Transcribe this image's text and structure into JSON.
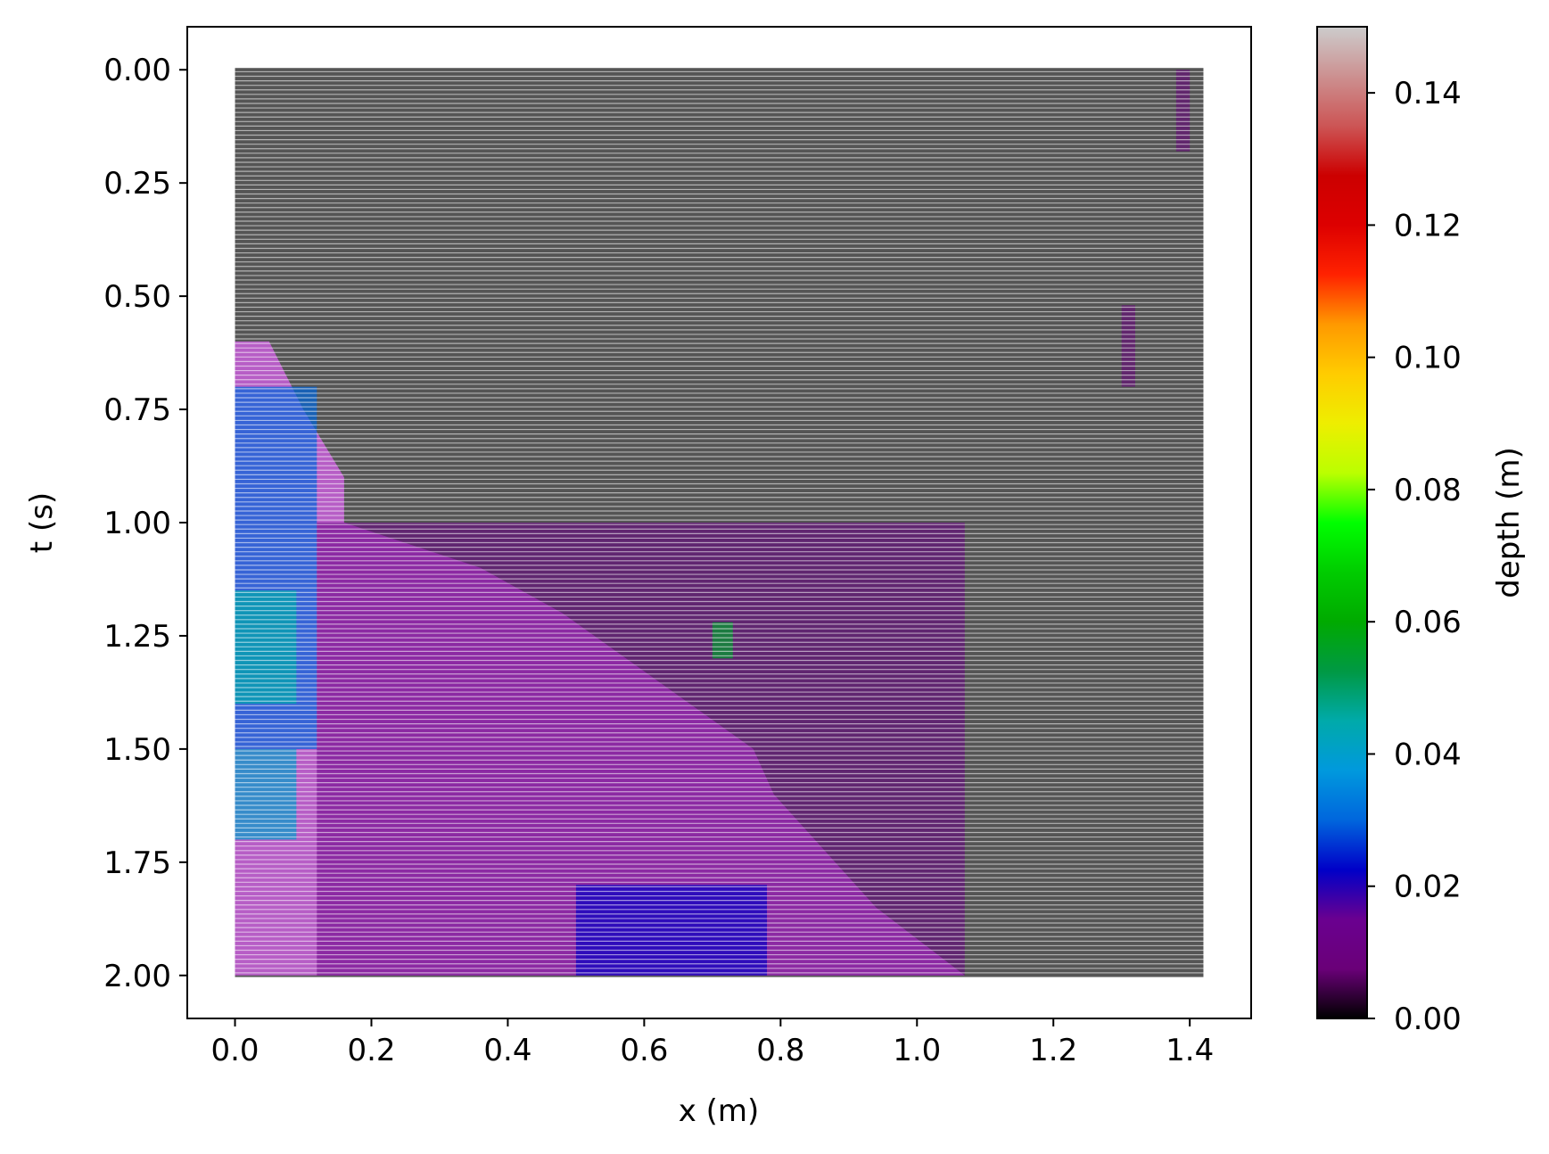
{
  "chart_data": {
    "type": "heatmap",
    "title": "",
    "xlabel": "x (m)",
    "ylabel": "t (s)",
    "xlim": [
      -0.07,
      1.49
    ],
    "ylim": [
      2.095,
      -0.095
    ],
    "y_inverted": true,
    "x_ticks": [
      "0.0",
      "0.2",
      "0.4",
      "0.6",
      "0.8",
      "1.0",
      "1.2",
      "1.4"
    ],
    "x_tick_values": [
      0.0,
      0.2,
      0.4,
      0.6,
      0.8,
      1.0,
      1.2,
      1.4
    ],
    "y_ticks": [
      "0.00",
      "0.25",
      "0.50",
      "0.75",
      "1.00",
      "1.25",
      "1.50",
      "1.75",
      "2.00"
    ],
    "y_tick_values": [
      0.0,
      0.25,
      0.5,
      0.75,
      1.0,
      1.25,
      1.5,
      1.75,
      2.0
    ],
    "x_range": [
      0.0,
      1.42
    ],
    "t_range": [
      0.0,
      2.0
    ],
    "row_count": 201,
    "background_color": "#555555",
    "grid": false,
    "colorbar": {
      "label": "depth (m)",
      "range": [
        0.0,
        0.15
      ],
      "ticks": [
        "0.00",
        "0.02",
        "0.04",
        "0.06",
        "0.08",
        "0.10",
        "0.12",
        "0.14"
      ],
      "tick_values": [
        0.0,
        0.02,
        0.04,
        0.06,
        0.08,
        0.1,
        0.12,
        0.14
      ],
      "colormap": "nipy_spectral",
      "stops": [
        {
          "v": 0.0,
          "c": "#000000"
        },
        {
          "v": 0.0075,
          "c": "#6a0078"
        },
        {
          "v": 0.015,
          "c": "#6a0090"
        },
        {
          "v": 0.0225,
          "c": "#0000c8"
        },
        {
          "v": 0.03,
          "c": "#0066dd"
        },
        {
          "v": 0.0375,
          "c": "#0099dd"
        },
        {
          "v": 0.045,
          "c": "#00aaaa"
        },
        {
          "v": 0.0525,
          "c": "#009944"
        },
        {
          "v": 0.06,
          "c": "#00aa00"
        },
        {
          "v": 0.0675,
          "c": "#00cc00"
        },
        {
          "v": 0.075,
          "c": "#00ff00"
        },
        {
          "v": 0.0825,
          "c": "#bbff00"
        },
        {
          "v": 0.09,
          "c": "#eeee00"
        },
        {
          "v": 0.0975,
          "c": "#ffcc00"
        },
        {
          "v": 0.105,
          "c": "#ff9900"
        },
        {
          "v": 0.1125,
          "c": "#ff2200"
        },
        {
          "v": 0.12,
          "c": "#dd0000"
        },
        {
          "v": 0.1275,
          "c": "#cc0000"
        },
        {
          "v": 0.135,
          "c": "#cc5555"
        },
        {
          "v": 0.15,
          "c": "#cccccc"
        }
      ]
    },
    "wet_region": {
      "description_units": "x in m, t in s",
      "boundary": [
        {
          "t": 0.6,
          "x_max": 0.05
        },
        {
          "t": 0.75,
          "x_max": 0.1
        },
        {
          "t": 0.9,
          "x_max": 0.16
        },
        {
          "t": 1.0,
          "x_max": 0.16
        },
        {
          "t": 1.1,
          "x_max": 0.36
        },
        {
          "t": 1.2,
          "x_max": 0.48
        },
        {
          "t": 1.35,
          "x_max": 0.62
        },
        {
          "t": 1.5,
          "x_max": 0.76
        },
        {
          "t": 1.6,
          "x_max": 0.79
        },
        {
          "t": 1.75,
          "x_max": 0.88
        },
        {
          "t": 1.85,
          "x_max": 0.94
        },
        {
          "t": 2.0,
          "x_max": 1.07
        }
      ],
      "depth_samples": [
        {
          "x_from": 0.0,
          "x_to": 0.12,
          "t_from": 0.7,
          "t_to": 1.5,
          "depth": 0.03
        },
        {
          "x_from": 0.0,
          "x_to": 0.09,
          "t_from": 1.15,
          "t_to": 1.4,
          "depth": 0.045
        },
        {
          "x_from": 0.0,
          "x_to": 0.09,
          "t_from": 1.5,
          "t_to": 1.7,
          "depth": 0.04
        },
        {
          "x_from": 0.12,
          "x_to": 1.07,
          "t_from": 1.0,
          "t_to": 2.0,
          "depth": 0.012
        },
        {
          "x_from": 0.5,
          "x_to": 0.78,
          "t_from": 1.8,
          "t_to": 2.0,
          "depth": 0.022
        },
        {
          "x_from": 0.7,
          "x_to": 0.73,
          "t_from": 1.22,
          "t_to": 1.3,
          "depth": 0.055
        },
        {
          "x_from": 1.3,
          "x_to": 1.32,
          "t_from": 0.52,
          "t_to": 0.7,
          "depth": 0.01
        },
        {
          "x_from": 1.38,
          "x_to": 1.4,
          "t_from": 0.0,
          "t_to": 0.18,
          "depth": 0.01
        }
      ]
    }
  }
}
